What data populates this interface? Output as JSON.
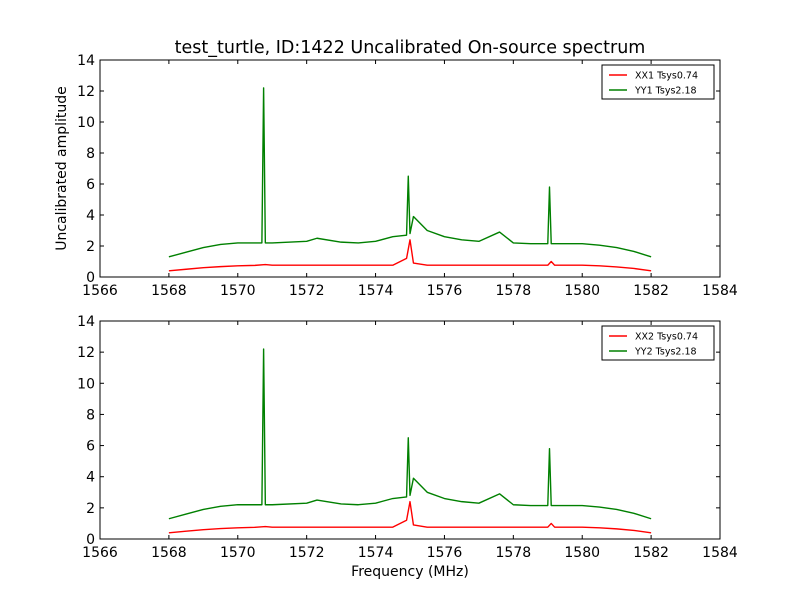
{
  "title": "test_turtle, ID:1422 Uncalibrated On-source spectrum",
  "chart_data": [
    {
      "type": "line",
      "title": "test_turtle, ID:1422 Uncalibrated On-source spectrum",
      "xlabel": "",
      "ylabel": "Uncalibrated amplitude",
      "xlim": [
        1566,
        1584
      ],
      "ylim": [
        0,
        14
      ],
      "x_ticks": [
        1566,
        1568,
        1570,
        1572,
        1574,
        1576,
        1578,
        1580,
        1582,
        1584
      ],
      "y_ticks": [
        0,
        2,
        4,
        6,
        8,
        10,
        12,
        14
      ],
      "grid": false,
      "legend_position": "top-right",
      "series": [
        {
          "name": "XX1 Tsys0.74",
          "color": "#ff0000",
          "x": [
            1568.0,
            1568.5,
            1569.0,
            1569.5,
            1570.0,
            1570.5,
            1570.8,
            1571.0,
            1572.0,
            1573.0,
            1574.0,
            1574.5,
            1574.9,
            1575.0,
            1575.1,
            1575.5,
            1576.0,
            1577.0,
            1578.0,
            1579.0,
            1579.1,
            1579.2,
            1580.0,
            1580.5,
            1581.0,
            1581.5,
            1582.0
          ],
          "values": [
            0.4,
            0.5,
            0.6,
            0.67,
            0.72,
            0.75,
            0.8,
            0.76,
            0.76,
            0.76,
            0.76,
            0.76,
            1.2,
            2.4,
            0.9,
            0.76,
            0.76,
            0.76,
            0.76,
            0.76,
            1.0,
            0.76,
            0.76,
            0.72,
            0.65,
            0.55,
            0.4
          ]
        },
        {
          "name": "YY1 Tsys2.18",
          "color": "#008000",
          "x": [
            1568.0,
            1568.5,
            1569.0,
            1569.5,
            1570.0,
            1570.5,
            1570.7,
            1570.75,
            1570.8,
            1571.0,
            1572.0,
            1572.3,
            1573.0,
            1573.5,
            1574.0,
            1574.5,
            1574.9,
            1574.95,
            1575.0,
            1575.1,
            1575.5,
            1576.0,
            1576.5,
            1577.0,
            1577.6,
            1578.0,
            1578.5,
            1579.0,
            1579.05,
            1579.1,
            1580.0,
            1580.5,
            1581.0,
            1581.5,
            1582.0
          ],
          "values": [
            1.3,
            1.6,
            1.9,
            2.1,
            2.2,
            2.2,
            2.2,
            12.2,
            2.2,
            2.2,
            2.3,
            2.5,
            2.25,
            2.2,
            2.3,
            2.6,
            2.7,
            6.5,
            2.8,
            3.9,
            3.0,
            2.6,
            2.4,
            2.3,
            2.9,
            2.2,
            2.15,
            2.15,
            5.8,
            2.15,
            2.15,
            2.05,
            1.9,
            1.65,
            1.3
          ]
        }
      ]
    },
    {
      "type": "line",
      "title": "",
      "xlabel": "Frequency (MHz)",
      "ylabel": "",
      "xlim": [
        1566,
        1584
      ],
      "ylim": [
        0,
        14
      ],
      "x_ticks": [
        1566,
        1568,
        1570,
        1572,
        1574,
        1576,
        1578,
        1580,
        1582,
        1584
      ],
      "y_ticks": [
        0,
        2,
        4,
        6,
        8,
        10,
        12,
        14
      ],
      "grid": false,
      "legend_position": "top-right",
      "series": [
        {
          "name": "XX2 Tsys0.74",
          "color": "#ff0000",
          "x": [
            1568.0,
            1568.5,
            1569.0,
            1569.5,
            1570.0,
            1570.5,
            1570.8,
            1571.0,
            1572.0,
            1573.0,
            1574.0,
            1574.5,
            1574.9,
            1575.0,
            1575.1,
            1575.5,
            1576.0,
            1577.0,
            1578.0,
            1579.0,
            1579.1,
            1579.2,
            1580.0,
            1580.5,
            1581.0,
            1581.5,
            1582.0
          ],
          "values": [
            0.4,
            0.5,
            0.6,
            0.67,
            0.72,
            0.75,
            0.8,
            0.76,
            0.76,
            0.76,
            0.76,
            0.76,
            1.2,
            2.4,
            0.9,
            0.76,
            0.76,
            0.76,
            0.76,
            0.76,
            1.0,
            0.76,
            0.76,
            0.72,
            0.65,
            0.55,
            0.4
          ]
        },
        {
          "name": "YY2 Tsys2.18",
          "color": "#008000",
          "x": [
            1568.0,
            1568.5,
            1569.0,
            1569.5,
            1570.0,
            1570.5,
            1570.7,
            1570.75,
            1570.8,
            1571.0,
            1572.0,
            1572.3,
            1573.0,
            1573.5,
            1574.0,
            1574.5,
            1574.9,
            1574.95,
            1575.0,
            1575.1,
            1575.5,
            1576.0,
            1576.5,
            1577.0,
            1577.6,
            1578.0,
            1578.5,
            1579.0,
            1579.05,
            1579.1,
            1580.0,
            1580.5,
            1581.0,
            1581.5,
            1582.0
          ],
          "values": [
            1.3,
            1.6,
            1.9,
            2.1,
            2.2,
            2.2,
            2.2,
            12.2,
            2.2,
            2.2,
            2.3,
            2.5,
            2.25,
            2.2,
            2.3,
            2.6,
            2.7,
            6.5,
            2.8,
            3.9,
            3.0,
            2.6,
            2.4,
            2.3,
            2.9,
            2.2,
            2.15,
            2.15,
            5.8,
            2.15,
            2.15,
            2.05,
            1.9,
            1.65,
            1.3
          ]
        }
      ]
    }
  ]
}
